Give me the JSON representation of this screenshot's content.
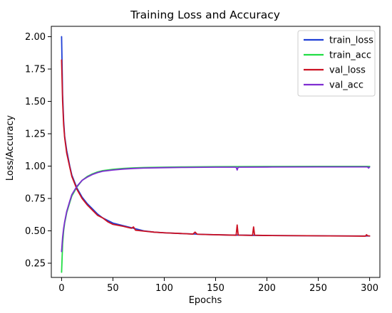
{
  "chart_data": {
    "type": "line",
    "title": "Training Loss and Accuracy",
    "xlabel": "Epochs",
    "ylabel": "Loss/Accuracy",
    "xlim": [
      -10,
      310
    ],
    "ylim": [
      0.14,
      2.08
    ],
    "xticks": [
      0,
      50,
      100,
      150,
      200,
      250,
      300
    ],
    "yticks": [
      0.25,
      0.5,
      0.75,
      1.0,
      1.25,
      1.5,
      1.75,
      2.0
    ],
    "xtick_labels": [
      "0",
      "50",
      "100",
      "150",
      "200",
      "250",
      "300"
    ],
    "ytick_labels": [
      "0.25",
      "0.50",
      "0.75",
      "1.00",
      "1.25",
      "1.50",
      "1.75",
      "2.00"
    ],
    "grid": false,
    "legend_position": "top-right",
    "series": [
      {
        "name": "train_loss",
        "color": "#1f3fd6",
        "points": [
          [
            0,
            2.0
          ],
          [
            1,
            1.55
          ],
          [
            2,
            1.35
          ],
          [
            3,
            1.23
          ],
          [
            5,
            1.12
          ],
          [
            8,
            1.0
          ],
          [
            10,
            0.93
          ],
          [
            15,
            0.83
          ],
          [
            20,
            0.76
          ],
          [
            25,
            0.71
          ],
          [
            30,
            0.67
          ],
          [
            35,
            0.63
          ],
          [
            40,
            0.6
          ],
          [
            45,
            0.58
          ],
          [
            50,
            0.56
          ],
          [
            60,
            0.54
          ],
          [
            70,
            0.52
          ],
          [
            80,
            0.5
          ],
          [
            90,
            0.49
          ],
          [
            100,
            0.485
          ],
          [
            120,
            0.478
          ],
          [
            140,
            0.472
          ],
          [
            160,
            0.468
          ],
          [
            180,
            0.466
          ],
          [
            200,
            0.464
          ],
          [
            220,
            0.463
          ],
          [
            240,
            0.462
          ],
          [
            260,
            0.461
          ],
          [
            280,
            0.46
          ],
          [
            300,
            0.46
          ]
        ]
      },
      {
        "name": "train_acc",
        "color": "#22dd44",
        "points": [
          [
            0,
            0.18
          ],
          [
            1,
            0.4
          ],
          [
            2,
            0.5
          ],
          [
            3,
            0.56
          ],
          [
            5,
            0.64
          ],
          [
            8,
            0.72
          ],
          [
            10,
            0.77
          ],
          [
            15,
            0.84
          ],
          [
            20,
            0.89
          ],
          [
            25,
            0.92
          ],
          [
            30,
            0.94
          ],
          [
            35,
            0.955
          ],
          [
            40,
            0.965
          ],
          [
            50,
            0.975
          ],
          [
            60,
            0.982
          ],
          [
            70,
            0.986
          ],
          [
            80,
            0.989
          ],
          [
            100,
            0.992
          ],
          [
            120,
            0.994
          ],
          [
            150,
            0.996
          ],
          [
            200,
            0.997
          ],
          [
            250,
            0.998
          ],
          [
            300,
            0.998
          ]
        ]
      },
      {
        "name": "val_loss",
        "color": "#cc1122",
        "points": [
          [
            0,
            1.82
          ],
          [
            1,
            1.5
          ],
          [
            2,
            1.32
          ],
          [
            3,
            1.22
          ],
          [
            5,
            1.1
          ],
          [
            8,
            0.99
          ],
          [
            10,
            0.92
          ],
          [
            15,
            0.82
          ],
          [
            20,
            0.75
          ],
          [
            25,
            0.7
          ],
          [
            30,
            0.66
          ],
          [
            35,
            0.62
          ],
          [
            40,
            0.6
          ],
          [
            45,
            0.57
          ],
          [
            50,
            0.55
          ],
          [
            60,
            0.535
          ],
          [
            68,
            0.52
          ],
          [
            70,
            0.53
          ],
          [
            72,
            0.505
          ],
          [
            80,
            0.498
          ],
          [
            90,
            0.49
          ],
          [
            100,
            0.485
          ],
          [
            120,
            0.478
          ],
          [
            128,
            0.475
          ],
          [
            130,
            0.49
          ],
          [
            132,
            0.474
          ],
          [
            140,
            0.472
          ],
          [
            160,
            0.468
          ],
          [
            170,
            0.466
          ],
          [
            171,
            0.545
          ],
          [
            172,
            0.467
          ],
          [
            180,
            0.466
          ],
          [
            186,
            0.465
          ],
          [
            187,
            0.53
          ],
          [
            188,
            0.466
          ],
          [
            200,
            0.464
          ],
          [
            220,
            0.463
          ],
          [
            240,
            0.462
          ],
          [
            260,
            0.461
          ],
          [
            280,
            0.46
          ],
          [
            296,
            0.459
          ],
          [
            297,
            0.47
          ],
          [
            298,
            0.462
          ],
          [
            300,
            0.46
          ]
        ]
      },
      {
        "name": "val_acc",
        "color": "#7f2dd1",
        "points": [
          [
            0,
            0.34
          ],
          [
            1,
            0.45
          ],
          [
            2,
            0.52
          ],
          [
            3,
            0.57
          ],
          [
            5,
            0.65
          ],
          [
            8,
            0.73
          ],
          [
            10,
            0.78
          ],
          [
            15,
            0.845
          ],
          [
            20,
            0.89
          ],
          [
            25,
            0.915
          ],
          [
            30,
            0.935
          ],
          [
            35,
            0.95
          ],
          [
            40,
            0.96
          ],
          [
            50,
            0.97
          ],
          [
            60,
            0.977
          ],
          [
            70,
            0.982
          ],
          [
            80,
            0.985
          ],
          [
            100,
            0.988
          ],
          [
            120,
            0.99
          ],
          [
            150,
            0.992
          ],
          [
            170,
            0.992
          ],
          [
            171,
            0.97
          ],
          [
            172,
            0.992
          ],
          [
            200,
            0.993
          ],
          [
            250,
            0.994
          ],
          [
            298,
            0.994
          ],
          [
            299,
            0.985
          ],
          [
            300,
            0.993
          ]
        ]
      }
    ]
  }
}
